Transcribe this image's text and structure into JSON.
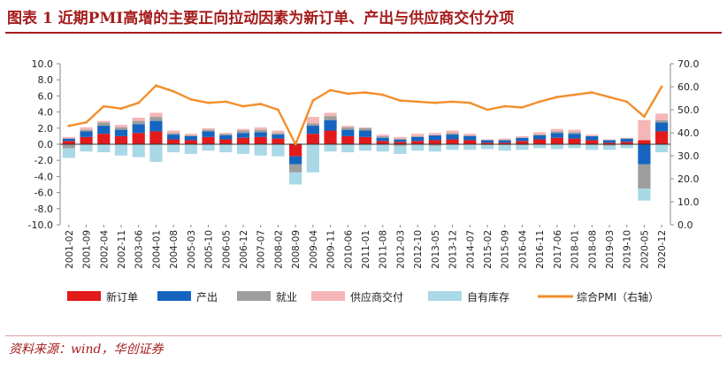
{
  "title": "图表 1   近期PMI高增的主要正向拉动因素为新订单、产出与供应商交付分项",
  "source": "资料来源：wind，华创证券",
  "colors": {
    "new_orders": "#E31A1C",
    "output": "#1565C0",
    "employment": "#9E9E9E",
    "delivery": "#F4B6B6",
    "inventory": "#A9D8E6",
    "pmi": "#F28E2B",
    "title": "#A51C1C"
  },
  "chart_data": {
    "type": "bar",
    "stacked": true,
    "title": "近期PMI高增的主要正向拉动因素为新订单、产出与供应商交付分项",
    "xlabel": "",
    "ylabel_left": "",
    "ylabel_right": "",
    "ylim_left": [
      -10,
      10
    ],
    "ylim_right": [
      0,
      70
    ],
    "yticks_left": [
      "10.0",
      "8.0",
      "6.0",
      "4.0",
      "2.0",
      "0.0",
      "-2.0",
      "-4.0",
      "-6.0",
      "-8.0",
      "-10.0"
    ],
    "yticks_right": [
      "70.0",
      "60.0",
      "50.0",
      "40.0",
      "30.0",
      "20.0",
      "10.0",
      "0.0"
    ],
    "legend_position": "bottom",
    "categories": [
      "2001-02",
      "2001-09",
      "2002-04",
      "2002-11",
      "2003-06",
      "2004-01",
      "2004-08",
      "2005-03",
      "2005-10",
      "2006-05",
      "2006-12",
      "2007-07",
      "2008-02",
      "2008-09",
      "2009-04",
      "2009-11",
      "2010-06",
      "2011-01",
      "2011-08",
      "2012-03",
      "2012-10",
      "2013-05",
      "2013-12",
      "2014-07",
      "2015-02",
      "2015-09",
      "2016-04",
      "2016-11",
      "2017-06",
      "2018-01",
      "2018-08",
      "2019-03",
      "2019-10",
      "2020-05",
      "2020-12"
    ],
    "series": [
      {
        "name": "新订单",
        "type": "bar",
        "axis": "left",
        "values": [
          0.4,
          0.9,
          1.3,
          1.0,
          1.4,
          1.6,
          0.6,
          0.5,
          0.9,
          0.6,
          0.8,
          0.9,
          0.7,
          -1.5,
          1.3,
          1.7,
          1.0,
          0.9,
          0.4,
          0.3,
          0.4,
          0.5,
          0.6,
          0.5,
          0.2,
          0.2,
          0.4,
          0.6,
          0.8,
          0.7,
          0.5,
          0.2,
          0.3,
          0.5,
          1.6
        ]
      },
      {
        "name": "产出",
        "type": "bar",
        "axis": "left",
        "values": [
          0.3,
          0.7,
          1.0,
          0.8,
          1.1,
          1.3,
          0.6,
          0.5,
          0.7,
          0.5,
          0.6,
          0.6,
          0.5,
          -1.0,
          1.0,
          1.3,
          0.8,
          0.8,
          0.4,
          0.3,
          0.5,
          0.6,
          0.6,
          0.5,
          0.3,
          0.3,
          0.4,
          0.5,
          0.6,
          0.6,
          0.5,
          0.3,
          0.4,
          -2.5,
          1.1
        ]
      },
      {
        "name": "就业",
        "type": "bar",
        "axis": "left",
        "values": [
          -0.5,
          0.2,
          0.4,
          0.3,
          0.4,
          0.5,
          0.2,
          0.1,
          0.2,
          0.2,
          0.3,
          0.3,
          0.2,
          -1.0,
          0.3,
          0.5,
          0.3,
          0.3,
          0.2,
          -0.2,
          0.1,
          -0.2,
          0.2,
          0.1,
          -0.1,
          -0.1,
          -0.1,
          0.1,
          0.2,
          0.2,
          -0.1,
          -0.2,
          -0.1,
          -3.0,
          0.3
        ]
      },
      {
        "name": "供应商交付",
        "type": "bar",
        "axis": "left",
        "values": [
          0.2,
          0.3,
          0.2,
          0.3,
          0.4,
          0.5,
          0.3,
          0.2,
          0.2,
          0.1,
          0.2,
          0.3,
          0.3,
          0.1,
          0.8,
          0.4,
          0.2,
          0.1,
          0.2,
          0.3,
          0.3,
          0.3,
          0.3,
          0.2,
          0.1,
          0.2,
          0.2,
          0.3,
          0.3,
          0.3,
          0.2,
          0.1,
          0.1,
          2.5,
          0.8
        ]
      },
      {
        "name": "自有库存",
        "type": "bar",
        "axis": "left",
        "values": [
          -1.2,
          -0.9,
          -1.0,
          -1.4,
          -1.6,
          -2.2,
          -1.0,
          -1.2,
          -0.8,
          -1.0,
          -1.2,
          -1.4,
          -1.5,
          -1.5,
          -3.5,
          -0.9,
          -1.0,
          -0.8,
          -0.9,
          -1.0,
          -0.8,
          -0.7,
          -0.7,
          -0.7,
          -0.5,
          -0.7,
          -0.6,
          -0.5,
          -0.6,
          -0.5,
          -0.6,
          -0.5,
          -0.4,
          -1.5,
          -1.0
        ]
      },
      {
        "name": "综合PMI（右轴）",
        "type": "line",
        "axis": "right",
        "values": [
          43.0,
          44.5,
          51.5,
          50.5,
          53.0,
          60.5,
          58.0,
          54.5,
          53.0,
          53.5,
          51.5,
          52.5,
          50.0,
          35.0,
          54.0,
          58.5,
          57.0,
          57.5,
          56.5,
          54.0,
          53.5,
          53.0,
          53.5,
          53.0,
          50.0,
          51.5,
          51.0,
          53.5,
          55.5,
          56.5,
          57.5,
          55.5,
          53.5,
          47.0,
          60.0
        ]
      }
    ]
  }
}
